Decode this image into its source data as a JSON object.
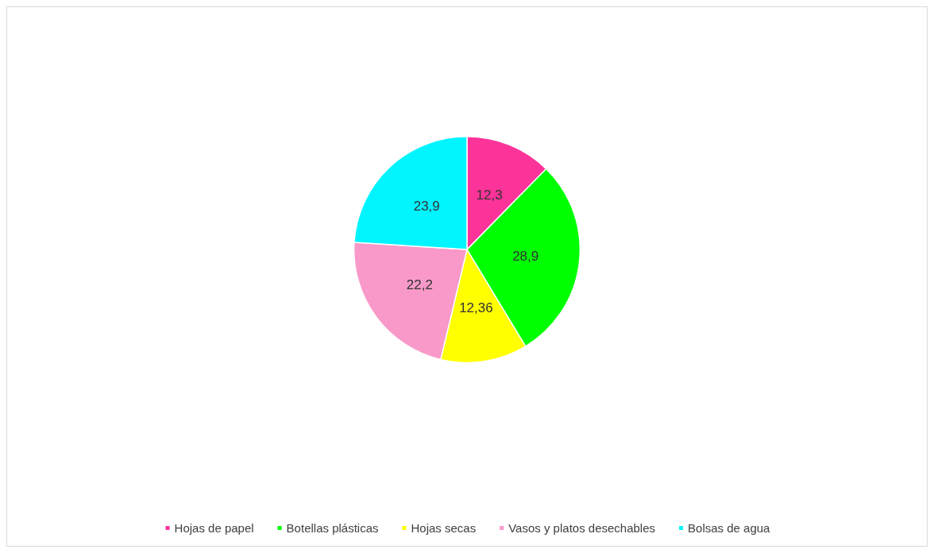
{
  "chart_data": {
    "type": "pie",
    "categories": [
      "Hojas de papel",
      "Botellas plásticas",
      "Hojas secas",
      "Vasos y platos desechables",
      "Bolsas de agua"
    ],
    "values": [
      12.3,
      28.9,
      12.36,
      22.2,
      23.9
    ],
    "colors": [
      "#fc3399",
      "#00ff00",
      "#ffff00",
      "#f899c9",
      "#00f5ff"
    ],
    "value_labels": [
      "12,3",
      "28,9",
      "12,36",
      "22,2",
      "23,9"
    ],
    "legend": "bottom"
  }
}
